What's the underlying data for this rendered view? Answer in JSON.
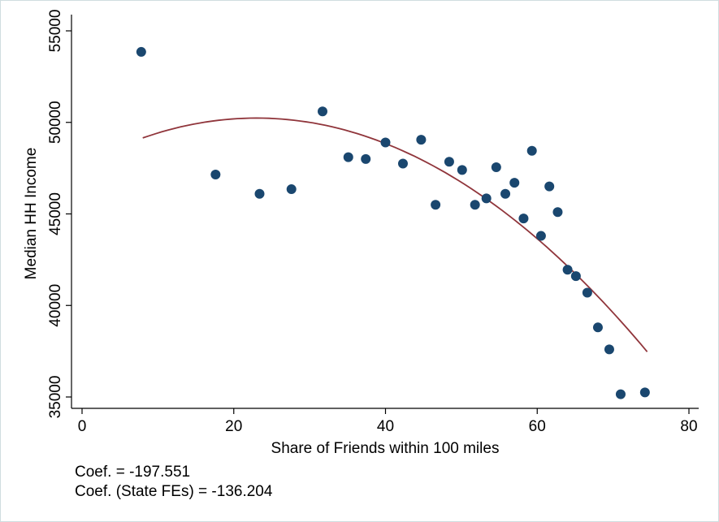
{
  "chart_data": {
    "type": "scatter",
    "xlabel": "Share of Friends within 100 miles",
    "ylabel": "Median HH Income",
    "xlim": [
      0,
      80
    ],
    "ylim": [
      35000,
      55000
    ],
    "x_ticks": [
      0,
      20,
      40,
      60,
      80
    ],
    "y_ticks": [
      35000,
      40000,
      45000,
      50000,
      55000
    ],
    "grid": false,
    "colors": {
      "points": "#1a476f",
      "fit_line": "#90353b"
    },
    "points": [
      {
        "x": 7.8,
        "y": 53850
      },
      {
        "x": 17.6,
        "y": 47150
      },
      {
        "x": 23.4,
        "y": 46100
      },
      {
        "x": 27.6,
        "y": 46350
      },
      {
        "x": 31.7,
        "y": 50600
      },
      {
        "x": 35.1,
        "y": 48100
      },
      {
        "x": 37.4,
        "y": 48000
      },
      {
        "x": 40.0,
        "y": 48900
      },
      {
        "x": 42.3,
        "y": 47750
      },
      {
        "x": 44.7,
        "y": 49050
      },
      {
        "x": 46.6,
        "y": 45500
      },
      {
        "x": 48.4,
        "y": 47850
      },
      {
        "x": 50.1,
        "y": 47400
      },
      {
        "x": 51.8,
        "y": 45500
      },
      {
        "x": 53.3,
        "y": 45850
      },
      {
        "x": 54.6,
        "y": 47550
      },
      {
        "x": 55.8,
        "y": 46100
      },
      {
        "x": 57.0,
        "y": 46700
      },
      {
        "x": 58.2,
        "y": 44750
      },
      {
        "x": 59.3,
        "y": 48450
      },
      {
        "x": 60.5,
        "y": 43800
      },
      {
        "x": 61.6,
        "y": 46500
      },
      {
        "x": 62.7,
        "y": 45100
      },
      {
        "x": 64.0,
        "y": 41950
      },
      {
        "x": 65.1,
        "y": 41600
      },
      {
        "x": 66.6,
        "y": 40700
      },
      {
        "x": 68.0,
        "y": 38800
      },
      {
        "x": 69.5,
        "y": 37600
      },
      {
        "x": 71.0,
        "y": 35150
      },
      {
        "x": 74.2,
        "y": 35250
      }
    ],
    "fit_line": [
      {
        "x": 8.0,
        "y": 49220
      },
      {
        "x": 15.0,
        "y": 49870
      },
      {
        "x": 22.0,
        "y": 50130
      },
      {
        "x": 30.0,
        "y": 49980
      },
      {
        "x": 40.0,
        "y": 48950
      },
      {
        "x": 50.0,
        "y": 46930
      },
      {
        "x": 60.0,
        "y": 43590
      },
      {
        "x": 66.0,
        "y": 41000
      },
      {
        "x": 74.5,
        "y": 37660
      }
    ]
  },
  "notes": {
    "coef": "Coef. = -197.551",
    "coef_state": "Coef. (State FEs) = -136.204"
  }
}
